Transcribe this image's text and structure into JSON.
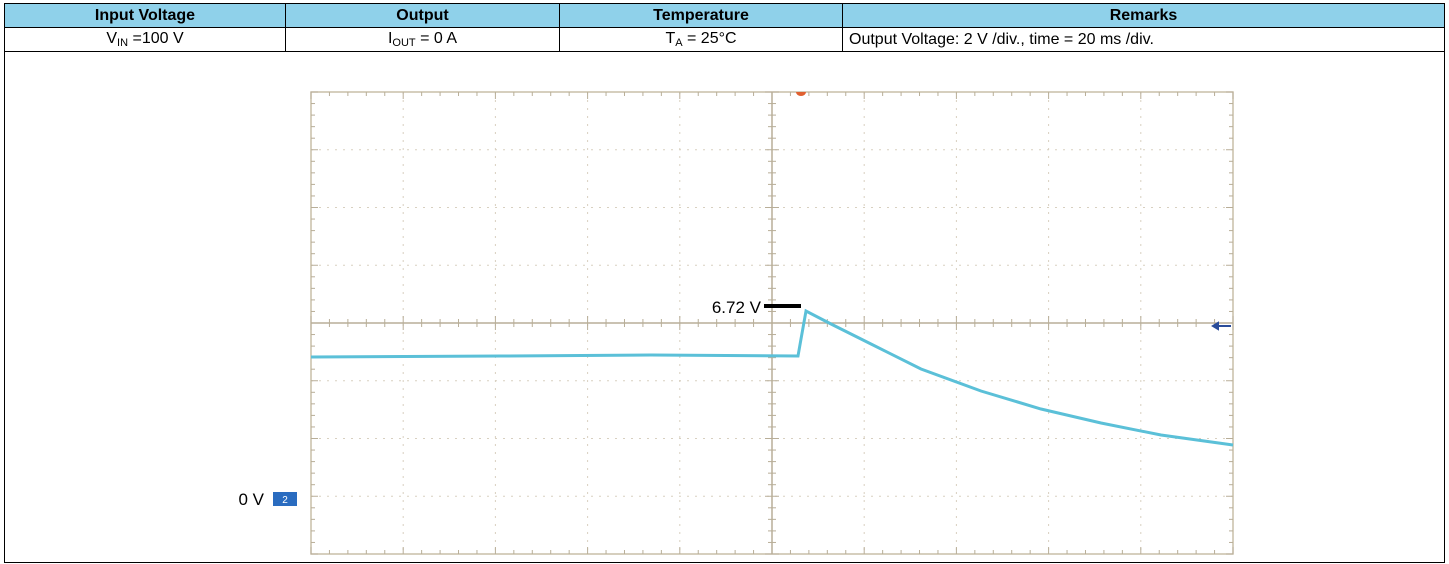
{
  "table": {
    "header": [
      "Input Voltage",
      "Output",
      "Temperature",
      "Remarks"
    ],
    "row": [
      {
        "main": "V",
        "sub": "IN",
        "rest": " =100 V"
      },
      {
        "main": "I",
        "sub": "OUT",
        "rest": " = 0 A"
      },
      {
        "main": "T",
        "sub": "A",
        "rest": " = 25°C"
      },
      {
        "main": "Output Voltage: 2 V /div., time = 20 ms /div.",
        "sub": "",
        "rest": ""
      }
    ]
  },
  "scope": {
    "peak_label": "6.72 V",
    "ground_label": "0 V",
    "channel": "2"
  }
}
